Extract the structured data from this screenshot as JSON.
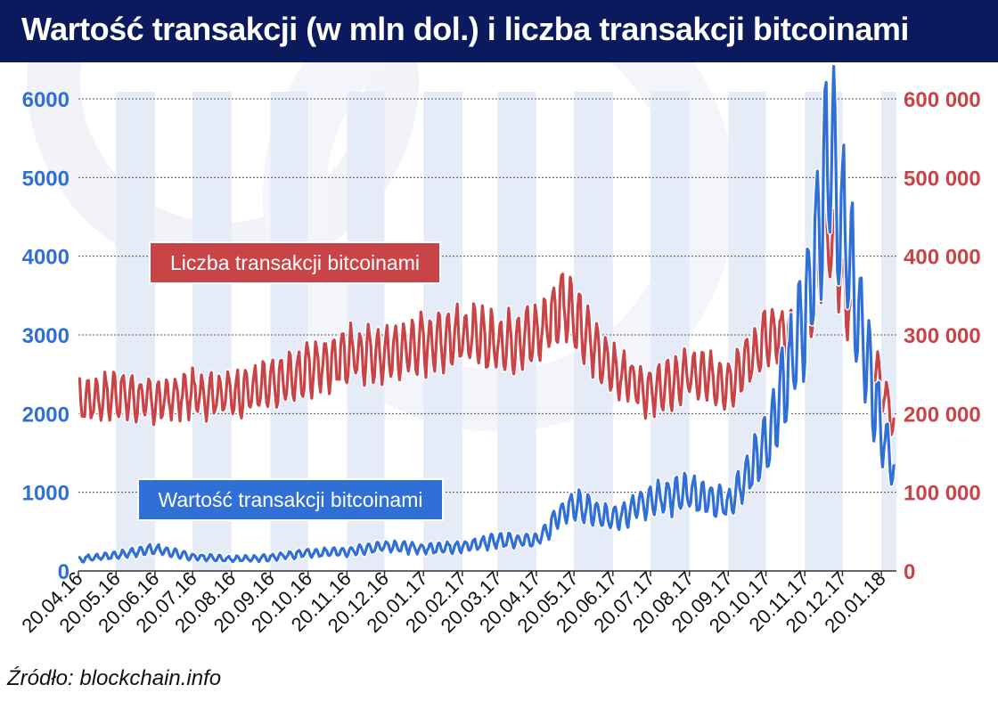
{
  "title": "Wartość transakcji (w mln dol.) i liczba transakcji bitcoinami",
  "source": "Źródło: blockchain.info",
  "colors": {
    "title_bg": "#0a1a5c",
    "blue": "#2f6fd6",
    "red": "#c94447",
    "band": "#e6ecf7"
  },
  "chart_data": {
    "type": "line",
    "x_tick_labels": [
      "20.04.16",
      "20.05.16",
      "20.06.16",
      "20.07.16",
      "20.08.16",
      "20.09.16",
      "20.10.16",
      "20.11.16",
      "20.12.16",
      "20.01.17",
      "20.02.17",
      "20.03.17",
      "20.04.17",
      "20.05.17",
      "20.06.17",
      "20.07.17",
      "20.08.17",
      "20.09.17",
      "20.10.17",
      "20.11.17",
      "20.12.17",
      "20.01.18"
    ],
    "y_left": {
      "ticks": [
        "0",
        "1000",
        "2000",
        "3000",
        "4000",
        "5000",
        "6000"
      ],
      "ylim": [
        0,
        6000
      ]
    },
    "y_right": {
      "ticks": [
        "0",
        "100 000",
        "200 000",
        "300 000",
        "400 000",
        "500 000",
        "600 000"
      ],
      "ylim": [
        0,
        600000
      ]
    },
    "grid": true,
    "series": [
      {
        "name": "Liczba transakcji bitcoinami",
        "axis": "right",
        "color": "#c94447",
        "x": [
          "2016-04-20",
          "2016-05-20",
          "2016-06-20",
          "2016-07-20",
          "2016-08-20",
          "2016-09-20",
          "2016-10-20",
          "2016-11-20",
          "2016-12-20",
          "2017-01-20",
          "2017-02-20",
          "2017-03-20",
          "2017-04-20",
          "2017-05-10",
          "2017-05-20",
          "2017-06-20",
          "2017-07-20",
          "2017-08-20",
          "2017-09-20",
          "2017-10-20",
          "2017-11-20",
          "2017-12-10",
          "2017-12-20",
          "2018-01-05",
          "2018-01-20",
          "2018-01-31"
        ],
        "values": [
          215000,
          225000,
          215000,
          225000,
          225000,
          235000,
          255000,
          275000,
          275000,
          290000,
          300000,
          290000,
          300000,
          340000,
          320000,
          255000,
          225000,
          250000,
          240000,
          295000,
          300000,
          440000,
          360000,
          300000,
          230000,
          190000
        ]
      },
      {
        "name": "Wartość transakcji bitcoinami",
        "axis": "left",
        "color": "#2f6fd6",
        "x": [
          "2016-04-20",
          "2016-05-20",
          "2016-06-20",
          "2016-07-20",
          "2016-08-20",
          "2016-09-20",
          "2016-10-20",
          "2016-11-20",
          "2016-12-20",
          "2017-01-20",
          "2017-02-20",
          "2017-03-20",
          "2017-04-20",
          "2017-05-10",
          "2017-05-20",
          "2017-06-20",
          "2017-07-20",
          "2017-08-20",
          "2017-09-20",
          "2017-10-20",
          "2017-11-20",
          "2017-12-10",
          "2017-12-20",
          "2018-01-05",
          "2018-01-20",
          "2018-01-31"
        ],
        "values": [
          150,
          200,
          280,
          180,
          150,
          170,
          230,
          250,
          320,
          280,
          310,
          390,
          380,
          720,
          850,
          650,
          900,
          1000,
          850,
          1600,
          3200,
          5300,
          4500,
          3000,
          1800,
          1300
        ]
      }
    ],
    "annotations": [
      {
        "text": "Liczba transakcji bitcoinami",
        "color": "#c94447"
      },
      {
        "text": "Wartość transakcji bitcoinami",
        "color": "#2f6fd6"
      }
    ]
  }
}
